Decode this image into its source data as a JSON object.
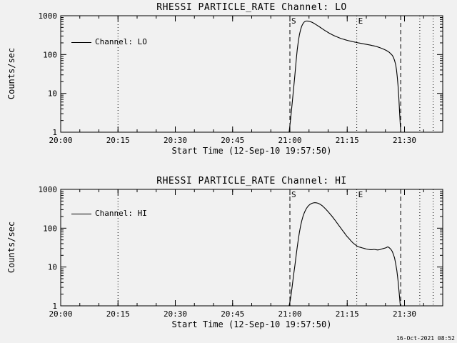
{
  "page": {
    "bg": "#f1f1f1",
    "fg": "#000000",
    "timestamp": "16-Oct-2021 08:52"
  },
  "chart_data": [
    {
      "type": "line",
      "title": "RHESSI PARTICLE_RATE Channel: LO",
      "xlabel": "Start Time (12-Sep-10 19:57:50)",
      "ylabel": "Counts/sec",
      "legend": "Channel: LO",
      "x_unit": "minutes after 20:00",
      "x_range": [
        0,
        100
      ],
      "y_range": [
        1,
        1000
      ],
      "y_scale": "log",
      "grid": false,
      "y_tick_labels": [
        "1",
        "10",
        "100",
        "1000"
      ],
      "x_major_ticks": [
        {
          "min": 0,
          "label": "20:00"
        },
        {
          "min": 15,
          "label": "20:15"
        },
        {
          "min": 30,
          "label": "20:30"
        },
        {
          "min": 45,
          "label": "20:45"
        },
        {
          "min": 60,
          "label": "21:00"
        },
        {
          "min": 75,
          "label": "21:15"
        },
        {
          "min": 90,
          "label": "21:30"
        }
      ],
      "x_minor_step": 5,
      "annotations": [
        {
          "time_min": 15,
          "style": "dotted",
          "label": ""
        },
        {
          "time_min": 60,
          "style": "dashed",
          "label": "S"
        },
        {
          "time_min": 77.5,
          "style": "dotted",
          "label": "E"
        },
        {
          "time_min": 89,
          "style": "dashed",
          "label": ""
        },
        {
          "time_min": 94,
          "style": "dotted",
          "label": ""
        },
        {
          "time_min": 97.5,
          "style": "dotted",
          "label": ""
        }
      ],
      "points": [
        [
          59.8,
          1
        ],
        [
          60.1,
          1.8
        ],
        [
          60.4,
          3.5
        ],
        [
          60.7,
          7
        ],
        [
          61,
          14
        ],
        [
          61.3,
          30
        ],
        [
          61.6,
          65
        ],
        [
          61.9,
          130
        ],
        [
          62.2,
          220
        ],
        [
          62.5,
          330
        ],
        [
          62.8,
          440
        ],
        [
          63.1,
          540
        ],
        [
          63.4,
          620
        ],
        [
          63.7,
          680
        ],
        [
          64,
          715
        ],
        [
          64.4,
          730
        ],
        [
          64.8,
          725
        ],
        [
          65.2,
          710
        ],
        [
          65.6,
          690
        ],
        [
          66,
          660
        ],
        [
          66.4,
          628
        ],
        [
          66.8,
          595
        ],
        [
          67.2,
          560
        ],
        [
          67.6,
          528
        ],
        [
          68,
          498
        ],
        [
          68.4,
          468
        ],
        [
          68.8,
          440
        ],
        [
          69.2,
          415
        ],
        [
          69.6,
          392
        ],
        [
          70,
          370
        ],
        [
          70.5,
          347
        ],
        [
          71,
          327
        ],
        [
          71.5,
          309
        ],
        [
          72,
          294
        ],
        [
          72.5,
          280
        ],
        [
          73,
          268
        ],
        [
          73.5,
          257
        ],
        [
          74,
          248
        ],
        [
          74.5,
          240
        ],
        [
          75,
          232
        ],
        [
          75.5,
          226
        ],
        [
          76,
          220
        ],
        [
          76.5,
          214
        ],
        [
          77,
          209
        ],
        [
          77.5,
          204
        ],
        [
          78,
          199
        ],
        [
          78.5,
          195
        ],
        [
          79,
          191
        ],
        [
          79.5,
          187
        ],
        [
          80,
          183
        ],
        [
          80.5,
          179
        ],
        [
          81,
          175
        ],
        [
          81.5,
          171
        ],
        [
          82,
          167
        ],
        [
          82.5,
          162
        ],
        [
          83,
          157
        ],
        [
          83.5,
          151
        ],
        [
          84,
          145
        ],
        [
          84.5,
          138
        ],
        [
          85,
          131
        ],
        [
          85.5,
          123
        ],
        [
          86,
          114
        ],
        [
          86.4,
          105
        ],
        [
          86.8,
          95
        ],
        [
          87.1,
          84
        ],
        [
          87.4,
          70
        ],
        [
          87.7,
          54
        ],
        [
          87.9,
          40
        ],
        [
          88.1,
          27
        ],
        [
          88.3,
          16
        ],
        [
          88.5,
          8
        ],
        [
          88.7,
          3.5
        ],
        [
          88.9,
          1.5
        ],
        [
          89,
          1
        ]
      ]
    },
    {
      "type": "line",
      "title": "RHESSI PARTICLE_RATE Channel: HI",
      "xlabel": "Start Time (12-Sep-10 19:57:50)",
      "ylabel": "Counts/sec",
      "legend": "Channel: HI",
      "x_unit": "minutes after 20:00",
      "x_range": [
        0,
        100
      ],
      "y_range": [
        1,
        1000
      ],
      "y_scale": "log",
      "grid": false,
      "y_tick_labels": [
        "1",
        "10",
        "100",
        "1000"
      ],
      "x_major_ticks": [
        {
          "min": 0,
          "label": "20:00"
        },
        {
          "min": 15,
          "label": "20:15"
        },
        {
          "min": 30,
          "label": "20:30"
        },
        {
          "min": 45,
          "label": "20:45"
        },
        {
          "min": 60,
          "label": "21:00"
        },
        {
          "min": 75,
          "label": "21:15"
        },
        {
          "min": 90,
          "label": "21:30"
        }
      ],
      "x_minor_step": 5,
      "annotations": [
        {
          "time_min": 15,
          "style": "dotted",
          "label": ""
        },
        {
          "time_min": 60,
          "style": "dashed",
          "label": "S"
        },
        {
          "time_min": 77.5,
          "style": "dotted",
          "label": "E"
        },
        {
          "time_min": 89,
          "style": "dashed",
          "label": ""
        },
        {
          "time_min": 94,
          "style": "dotted",
          "label": ""
        },
        {
          "time_min": 97.5,
          "style": "dotted",
          "label": ""
        }
      ],
      "points": [
        [
          59.8,
          1
        ],
        [
          60.1,
          1.4
        ],
        [
          60.4,
          2.2
        ],
        [
          60.7,
          3.8
        ],
        [
          61,
          6.5
        ],
        [
          61.3,
          11
        ],
        [
          61.6,
          19
        ],
        [
          61.9,
          32
        ],
        [
          62.2,
          52
        ],
        [
          62.5,
          80
        ],
        [
          62.8,
          115
        ],
        [
          63.1,
          155
        ],
        [
          63.4,
          198
        ],
        [
          63.7,
          240
        ],
        [
          64,
          280
        ],
        [
          64.3,
          318
        ],
        [
          64.6,
          352
        ],
        [
          64.9,
          382
        ],
        [
          65.2,
          406
        ],
        [
          65.5,
          424
        ],
        [
          65.8,
          438
        ],
        [
          66.1,
          447
        ],
        [
          66.4,
          452
        ],
        [
          66.7,
          452
        ],
        [
          67,
          448
        ],
        [
          67.3,
          440
        ],
        [
          67.6,
          428
        ],
        [
          67.9,
          413
        ],
        [
          68.2,
          395
        ],
        [
          68.5,
          375
        ],
        [
          68.8,
          353
        ],
        [
          69.1,
          331
        ],
        [
          69.4,
          309
        ],
        [
          69.7,
          287
        ],
        [
          70,
          266
        ],
        [
          70.3,
          246
        ],
        [
          70.6,
          227
        ],
        [
          70.9,
          209
        ],
        [
          71.2,
          192
        ],
        [
          71.5,
          176
        ],
        [
          71.8,
          161
        ],
        [
          72.1,
          147
        ],
        [
          72.4,
          134
        ],
        [
          72.7,
          122
        ],
        [
          73,
          111
        ],
        [
          73.3,
          101
        ],
        [
          73.6,
          92
        ],
        [
          73.9,
          84
        ],
        [
          74.2,
          77
        ],
        [
          74.5,
          70
        ],
        [
          74.8,
          64
        ],
        [
          75.1,
          59
        ],
        [
          75.4,
          55
        ],
        [
          75.7,
          51
        ],
        [
          76,
          47
        ],
        [
          76.3,
          44
        ],
        [
          76.6,
          41
        ],
        [
          76.9,
          39
        ],
        [
          77.2,
          37
        ],
        [
          77.5,
          35
        ],
        [
          78,
          33
        ],
        [
          78.5,
          32
        ],
        [
          79,
          31
        ],
        [
          79.5,
          30
        ],
        [
          80,
          29
        ],
        [
          80.5,
          28.5
        ],
        [
          81,
          28
        ],
        [
          81.5,
          28
        ],
        [
          82,
          28.5
        ],
        [
          82.5,
          28
        ],
        [
          83,
          27.5
        ],
        [
          83.5,
          28
        ],
        [
          84,
          29
        ],
        [
          84.5,
          30
        ],
        [
          85,
          31
        ],
        [
          85.3,
          32
        ],
        [
          85.6,
          33
        ],
        [
          85.9,
          32
        ],
        [
          86.2,
          30
        ],
        [
          86.5,
          28
        ],
        [
          86.8,
          25
        ],
        [
          87.1,
          21
        ],
        [
          87.4,
          17
        ],
        [
          87.7,
          12
        ],
        [
          88,
          8
        ],
        [
          88.3,
          4.5
        ],
        [
          88.6,
          2.2
        ],
        [
          88.9,
          1
        ]
      ]
    }
  ]
}
